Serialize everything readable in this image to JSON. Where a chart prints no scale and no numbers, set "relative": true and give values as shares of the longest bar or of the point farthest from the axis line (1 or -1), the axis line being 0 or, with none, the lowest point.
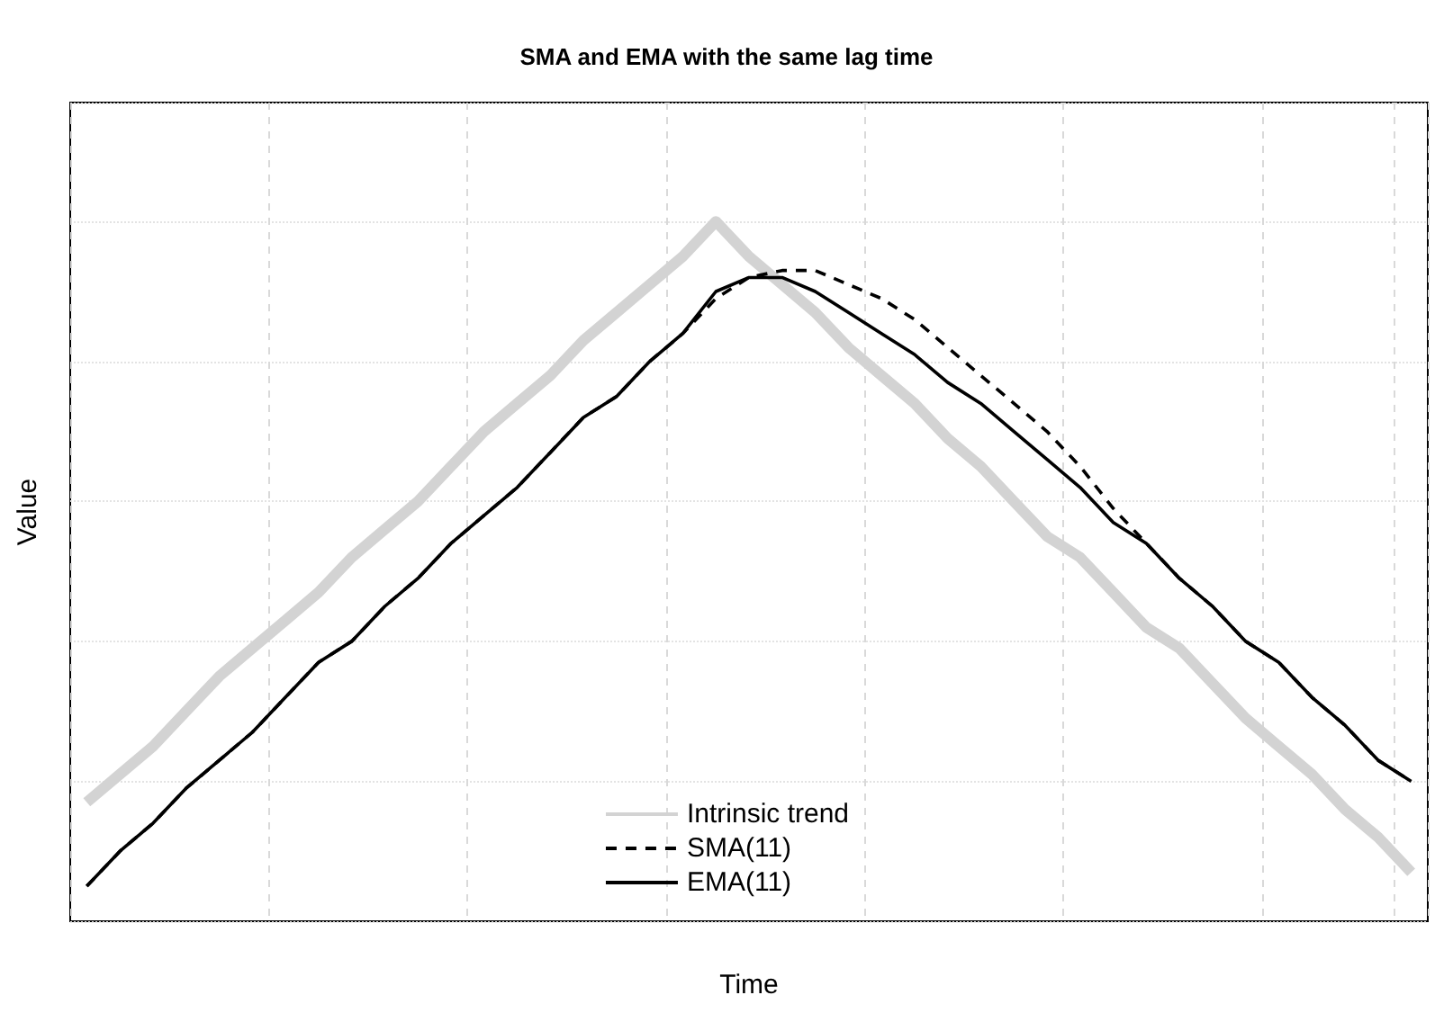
{
  "chart_data": {
    "type": "line",
    "title": "SMA and EMA with the same lag time",
    "xlabel": "Time",
    "ylabel": "Value",
    "relative": true,
    "grid": true,
    "legend": "bottom",
    "marker": "none",
    "categories": [
      null,
      null,
      null,
      null,
      null,
      null,
      null,
      null,
      null,
      null,
      null,
      null,
      null,
      null,
      null,
      null,
      null,
      null,
      null,
      null,
      null,
      null,
      null,
      null,
      null,
      null,
      null,
      null,
      null,
      null,
      null,
      null,
      null,
      null,
      null,
      null,
      null,
      null,
      null,
      null,
      null
    ],
    "series": [
      {
        "name": "Intrinsic trend",
        "color": "#d3d3d3",
        "line_style": "solid",
        "values": [
          0.17,
          0.21,
          0.25,
          0.3,
          0.35,
          0.39,
          0.43,
          0.47,
          0.52,
          0.56,
          0.6,
          0.65,
          0.7,
          0.74,
          0.78,
          0.83,
          0.87,
          0.91,
          0.95,
          1.0,
          0.95,
          0.91,
          0.87,
          0.82,
          0.78,
          0.74,
          0.69,
          0.65,
          0.6,
          0.55,
          0.52,
          0.47,
          0.42,
          0.39,
          0.34,
          0.29,
          0.25,
          0.21,
          0.16,
          0.12,
          0.07
        ]
      },
      {
        "name": "SMA(11)",
        "color": "#000000",
        "line_style": "dashed",
        "values": [
          0.05,
          0.1,
          0.14,
          0.19,
          0.23,
          0.27,
          0.32,
          0.37,
          0.4,
          0.45,
          0.49,
          0.54,
          0.58,
          0.62,
          0.67,
          0.72,
          0.75,
          0.8,
          0.84,
          0.89,
          0.92,
          0.93,
          0.93,
          0.91,
          0.89,
          0.86,
          0.82,
          0.78,
          0.74,
          0.7,
          0.65,
          0.59,
          0.54,
          0.49,
          0.45,
          0.4,
          0.37,
          0.32,
          0.28,
          0.23,
          0.2
        ]
      },
      {
        "name": "EMA(11)",
        "color": "#000000",
        "line_style": "solid",
        "values": [
          0.05,
          0.1,
          0.14,
          0.19,
          0.23,
          0.27,
          0.32,
          0.37,
          0.4,
          0.45,
          0.49,
          0.54,
          0.58,
          0.62,
          0.67,
          0.72,
          0.75,
          0.8,
          0.84,
          0.9,
          0.92,
          0.92,
          0.9,
          0.87,
          0.84,
          0.81,
          0.77,
          0.74,
          0.7,
          0.66,
          0.62,
          0.57,
          0.54,
          0.49,
          0.45,
          0.4,
          0.37,
          0.32,
          0.28,
          0.23,
          0.2
        ]
      }
    ]
  }
}
